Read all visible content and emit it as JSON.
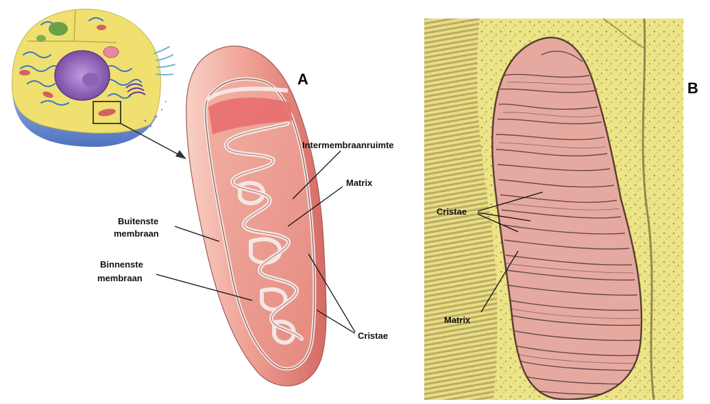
{
  "panel_a": {
    "letter": "A",
    "labels": {
      "intermembrane": "Intermembraanruimte",
      "matrix": "Matrix",
      "outer_membrane_1": "Buitenste",
      "outer_membrane_2": "membraan",
      "inner_membrane_1": "Binnenste",
      "inner_membrane_2": "membraan",
      "cristae": "Cristae"
    }
  },
  "panel_b": {
    "letter": "B",
    "labels": {
      "cristae": "Cristae",
      "matrix": "Matrix"
    }
  },
  "colors": {
    "mito_outer": "#f2a9a0",
    "mito_shade": "#d9706a",
    "mito_inner": "#f7c3b5",
    "membrane_edge": "#8a5a52",
    "em_background": "#e9e08a",
    "em_mito": "#e6a9a0",
    "cell_yellow": "#efe070",
    "cell_blue": "#5f86c9"
  }
}
